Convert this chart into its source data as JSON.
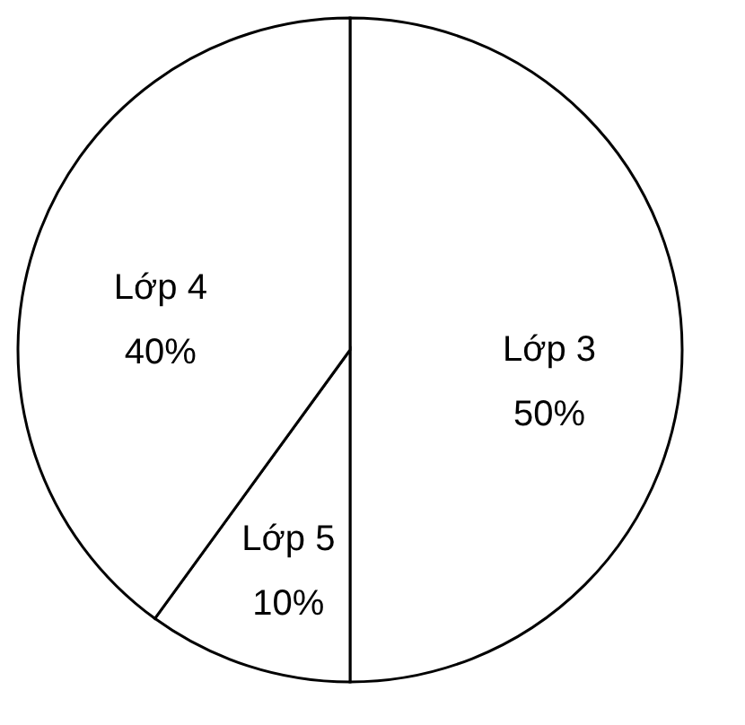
{
  "chart_data": {
    "type": "pie",
    "categories": [
      "Lớp 3",
      "Lớp 5",
      "Lớp 4"
    ],
    "values": [
      50,
      10,
      40
    ],
    "value_labels": [
      "50%",
      "10%",
      "40%"
    ],
    "colors": [
      "#ffffff",
      "#ffffff",
      "#ffffff"
    ],
    "legend": false
  }
}
